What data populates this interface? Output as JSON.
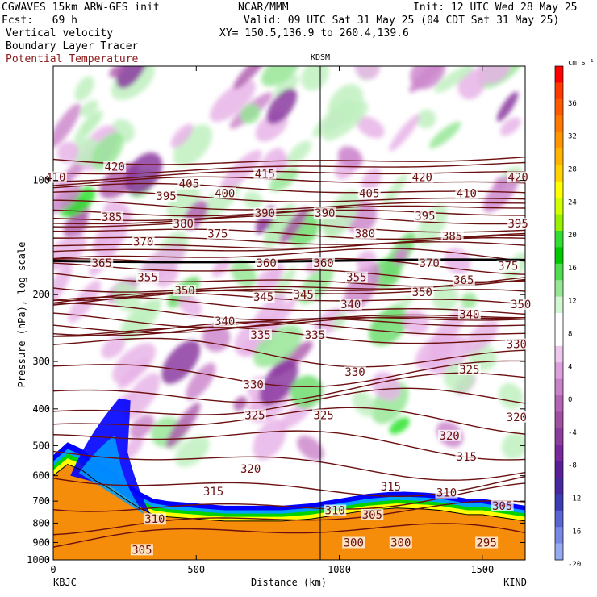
{
  "header": {
    "line1_left": "CGWAVES 15km ARW-GFS init",
    "line1_mid": "NCAR/MMM",
    "line1_right": "Init: 12 UTC Wed 28 May 25",
    "line2_left": "Fcst:   69 h",
    "line2_right": "Valid: 09 UTC Sat 31 May 25 (04 CDT Sat 31 May 25)",
    "line3_left": "Vertical velocity",
    "line3_right": "XY= 150.5,136.9 to 260.4,139.6",
    "line4_left": "Boundary Layer Tracer",
    "line5_left": "Potential Temperature"
  },
  "colors": {
    "isentrope": "#6b1010",
    "terrain": "#f58c0a",
    "boundary_layer_shades": [
      "#ffffff",
      "#ffff00",
      "#00d200",
      "#00a0ff",
      "#0000ff"
    ],
    "upward": [
      "#c0f0c0",
      "#96e696",
      "#6edc6e",
      "#2ee42e"
    ],
    "downward": [
      "#e8b4e8",
      "#cc88cc",
      "#b060b0",
      "#8b3aa0"
    ]
  },
  "chart_data": {
    "type": "cross-section",
    "station_top": "KDSM",
    "xlabel": "Distance (km)",
    "ylabel": "Pressure (hPa), log scale",
    "x_left_label": "KBJC",
    "x_right_label": "KIND",
    "xlim": [
      0,
      1650
    ],
    "ylim": [
      1000,
      50
    ],
    "x_ticks": [
      0,
      500,
      1000,
      1500
    ],
    "y_ticks": [
      100,
      200,
      300,
      400,
      500,
      600,
      700,
      800,
      900,
      1000
    ],
    "station_marker_x_km": 940,
    "colorbar": {
      "units": "cm s⁻¹",
      "labels": [
        "36",
        "32",
        "28",
        "24",
        "20",
        "16",
        "12",
        "8",
        "4",
        "0",
        "-4",
        "-8",
        "-12",
        "-16",
        "-20"
      ],
      "colors": [
        "#ff0000",
        "#ff3a00",
        "#ff5a00",
        "#ff7800",
        "#ff9600",
        "#ffb400",
        "#ffd200",
        "#ffff00",
        "#d2ff00",
        "#96f000",
        "#32dc32",
        "#00c800",
        "#50dc50",
        "#96e696",
        "#d2f5d2",
        "#ffffff",
        "#ffffff",
        "#ecc8ec",
        "#dca0dc",
        "#c882c8",
        "#b464b4",
        "#a050a0",
        "#8c3c9c",
        "#78289b",
        "#5a1e96",
        "#4628a0",
        "#3c3cb4",
        "#5a64d2",
        "#7888e6",
        "#96aaf0"
      ]
    },
    "isentrope_labels": [
      {
        "text": "410",
        "x": 8,
        "p": 98
      },
      {
        "text": "420",
        "x": 215,
        "p": 92
      },
      {
        "text": "415",
        "x": 740,
        "p": 96
      },
      {
        "text": "420",
        "x": 1290,
        "p": 98
      },
      {
        "text": "420",
        "x": 1625,
        "p": 98
      },
      {
        "text": "385",
        "x": 205,
        "p": 125
      },
      {
        "text": "405",
        "x": 475,
        "p": 102
      },
      {
        "text": "400",
        "x": 600,
        "p": 108
      },
      {
        "text": "390",
        "x": 740,
        "p": 122
      },
      {
        "text": "390",
        "x": 950,
        "p": 122
      },
      {
        "text": "405",
        "x": 1105,
        "p": 108
      },
      {
        "text": "410",
        "x": 1445,
        "p": 108
      },
      {
        "text": "395",
        "x": 1300,
        "p": 124
      },
      {
        "text": "395",
        "x": 1625,
        "p": 130
      },
      {
        "text": "395",
        "x": 395,
        "p": 110
      },
      {
        "text": "380",
        "x": 455,
        "p": 130
      },
      {
        "text": "375",
        "x": 575,
        "p": 138
      },
      {
        "text": "380",
        "x": 1090,
        "p": 138
      },
      {
        "text": "385",
        "x": 1395,
        "p": 140
      },
      {
        "text": "370",
        "x": 315,
        "p": 145
      },
      {
        "text": "365",
        "x": 170,
        "p": 165
      },
      {
        "text": "360",
        "x": 745,
        "p": 165
      },
      {
        "text": "360",
        "x": 945,
        "p": 165
      },
      {
        "text": "370",
        "x": 1315,
        "p": 165
      },
      {
        "text": "375",
        "x": 1590,
        "p": 168
      },
      {
        "text": "355",
        "x": 330,
        "p": 180
      },
      {
        "text": "350",
        "x": 460,
        "p": 195
      },
      {
        "text": "355",
        "x": 1060,
        "p": 180
      },
      {
        "text": "365",
        "x": 1435,
        "p": 183
      },
      {
        "text": "345",
        "x": 735,
        "p": 203
      },
      {
        "text": "345",
        "x": 875,
        "p": 200
      },
      {
        "text": "350",
        "x": 1290,
        "p": 197
      },
      {
        "text": "350",
        "x": 1635,
        "p": 212
      },
      {
        "text": "340",
        "x": 1040,
        "p": 212
      },
      {
        "text": "340",
        "x": 600,
        "p": 235
      },
      {
        "text": "340",
        "x": 1455,
        "p": 225
      },
      {
        "text": "335",
        "x": 725,
        "p": 255
      },
      {
        "text": "335",
        "x": 915,
        "p": 255
      },
      {
        "text": "330",
        "x": 1620,
        "p": 270
      },
      {
        "text": "330",
        "x": 1055,
        "p": 320
      },
      {
        "text": "325",
        "x": 1455,
        "p": 315
      },
      {
        "text": "330",
        "x": 700,
        "p": 345
      },
      {
        "text": "325",
        "x": 705,
        "p": 415
      },
      {
        "text": "325",
        "x": 945,
        "p": 415
      },
      {
        "text": "320",
        "x": 1385,
        "p": 470
      },
      {
        "text": "320",
        "x": 1620,
        "p": 420
      },
      {
        "text": "320",
        "x": 690,
        "p": 575
      },
      {
        "text": "315",
        "x": 1445,
        "p": 535
      },
      {
        "text": "315",
        "x": 560,
        "p": 660
      },
      {
        "text": "315",
        "x": 1180,
        "p": 640
      },
      {
        "text": "310",
        "x": 1375,
        "p": 665
      },
      {
        "text": "305",
        "x": 1570,
        "p": 720
      },
      {
        "text": "310",
        "x": 355,
        "p": 780
      },
      {
        "text": "310",
        "x": 985,
        "p": 740
      },
      {
        "text": "305",
        "x": 1115,
        "p": 760
      },
      {
        "text": "305",
        "x": 310,
        "p": 940
      },
      {
        "text": "300",
        "x": 1050,
        "p": 900
      },
      {
        "text": "300",
        "x": 1215,
        "p": 900
      },
      {
        "text": "295",
        "x": 1515,
        "p": 900
      }
    ],
    "terrain_p": [
      [
        0,
        600
      ],
      [
        50,
        560
      ],
      [
        100,
        580
      ],
      [
        150,
        620
      ],
      [
        200,
        650
      ],
      [
        250,
        690
      ],
      [
        300,
        730
      ],
      [
        350,
        760
      ],
      [
        400,
        770
      ],
      [
        500,
        780
      ],
      [
        600,
        790
      ],
      [
        700,
        790
      ],
      [
        800,
        790
      ],
      [
        900,
        780
      ],
      [
        1000,
        760
      ],
      [
        1100,
        740
      ],
      [
        1200,
        730
      ],
      [
        1300,
        735
      ],
      [
        1350,
        740
      ],
      [
        1400,
        750
      ],
      [
        1450,
        760
      ],
      [
        1500,
        760
      ],
      [
        1550,
        770
      ],
      [
        1600,
        780
      ],
      [
        1650,
        790
      ]
    ]
  }
}
